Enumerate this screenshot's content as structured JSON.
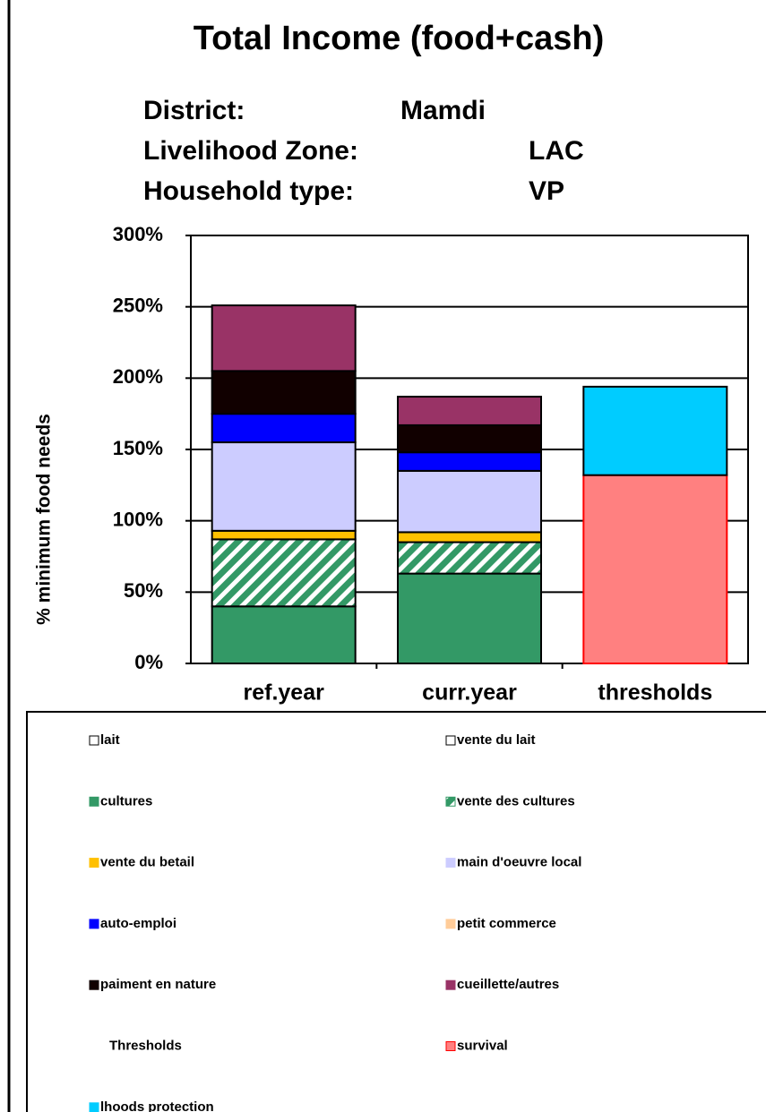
{
  "chart_data": {
    "type": "bar",
    "stacked": true,
    "title": "Total Income (food+cash)",
    "info": [
      {
        "label": "District:",
        "value": "Mamdi"
      },
      {
        "label": "Livelihood Zone:",
        "value": "LAC"
      },
      {
        "label": "Household type:",
        "value": "VP"
      }
    ],
    "ylabel": "% minimum food needs",
    "categories": [
      "ref.year",
      "curr.year",
      "thresholds"
    ],
    "ylim": [
      0,
      300
    ],
    "yticks": [
      {
        "value": 0,
        "label": "0%"
      },
      {
        "value": 50,
        "label": "50%"
      },
      {
        "value": 100,
        "label": "100%"
      },
      {
        "value": 150,
        "label": "150%"
      },
      {
        "value": 200,
        "label": "200%"
      },
      {
        "value": 250,
        "label": "250%"
      },
      {
        "value": 300,
        "label": "300%"
      }
    ],
    "grid": true,
    "legend_heading": "Thresholds",
    "series": [
      {
        "name": "lait",
        "color": "#ffffff",
        "values": [
          0,
          0,
          null
        ]
      },
      {
        "name": "vente du lait",
        "color": "#ffffff",
        "values": [
          0,
          0,
          null
        ]
      },
      {
        "name": "cultures",
        "color": "#339966",
        "values": [
          40,
          63,
          null
        ]
      },
      {
        "name": "vente des cultures",
        "color": "#339966",
        "pattern": "diagonal",
        "values": [
          47,
          22,
          null
        ]
      },
      {
        "name": "vente du betail",
        "color": "#ffc000",
        "values": [
          6,
          7,
          null
        ]
      },
      {
        "name": "main d'oeuvre local",
        "color": "#ccccff",
        "values": [
          62,
          43,
          null
        ]
      },
      {
        "name": "auto-emploi",
        "color": "#0000ff",
        "values": [
          20,
          13,
          null
        ]
      },
      {
        "name": "petit commerce",
        "color": "#ffcc99",
        "values": [
          0,
          0,
          null
        ]
      },
      {
        "name": "paiment en nature",
        "color": "#110000",
        "values": [
          30,
          19,
          null
        ]
      },
      {
        "name": "cueillette/autres",
        "color": "#993366",
        "values": [
          46,
          20,
          null
        ]
      },
      {
        "name": "survival",
        "color": "#ff8080",
        "edgecolor": "#ff0000",
        "values": [
          null,
          null,
          132
        ]
      },
      {
        "name": "lhoods protection",
        "color": "#00ccff",
        "values": [
          null,
          null,
          62
        ]
      }
    ]
  }
}
